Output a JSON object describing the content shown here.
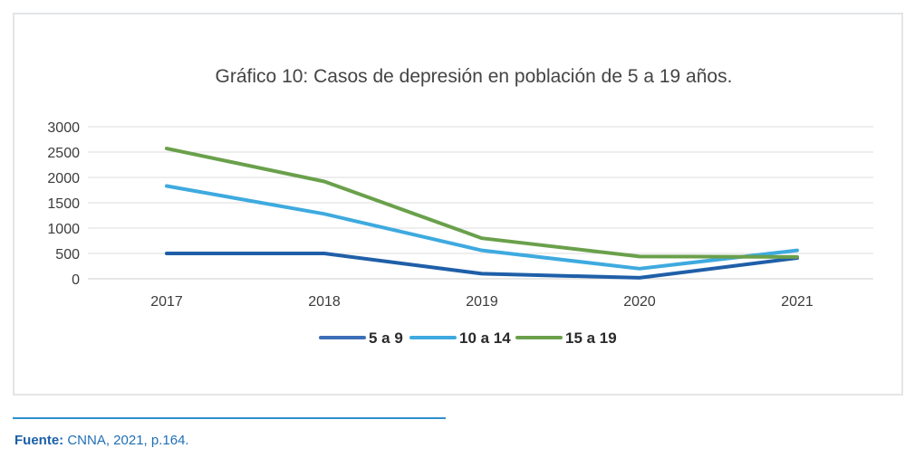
{
  "chart_data": {
    "type": "line",
    "title": "Gráfico 10: Casos de depresión en población de 5 a 19 años.",
    "categories": [
      "2017",
      "2018",
      "2019",
      "2020",
      "2021"
    ],
    "ylim": [
      0,
      3000
    ],
    "yticks": [
      "0",
      "500",
      "1000",
      "1500",
      "2000",
      "2500",
      "3000"
    ],
    "grid": true,
    "legend_position": "bottom",
    "series": [
      {
        "name": "5 a 9",
        "color": "#1f5fa8",
        "legend_color": "#3d6fb8",
        "values": [
          500,
          500,
          100,
          20,
          410
        ]
      },
      {
        "name": "10 a 14",
        "color": "#3eaadf",
        "legend_color": "#3eaadf",
        "values": [
          1830,
          1280,
          560,
          200,
          560
        ]
      },
      {
        "name": "15 a 19",
        "color": "#6aa04b",
        "legend_color": "#6aa04b",
        "values": [
          2570,
          1920,
          800,
          440,
          430
        ]
      }
    ]
  },
  "source": {
    "label": "Fuente:",
    "text": " CNNA, 2021, p.164."
  }
}
